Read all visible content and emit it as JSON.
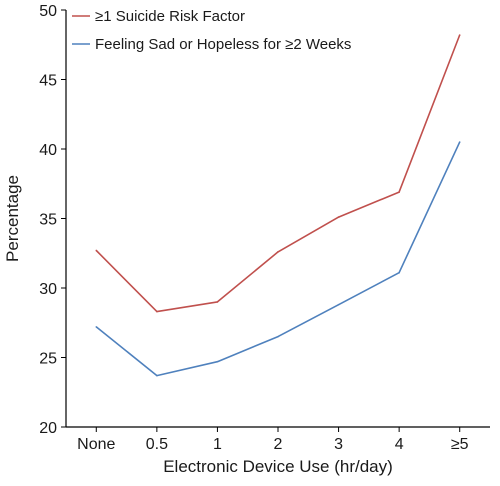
{
  "chart_data": {
    "type": "line",
    "categories": [
      "None",
      "0.5",
      "1",
      "2",
      "3",
      "4",
      "≥5"
    ],
    "series": [
      {
        "name": "≥1 Suicide Risk Factor",
        "color": "#c0504d",
        "values": [
          32.7,
          28.3,
          29.0,
          32.6,
          35.1,
          36.9,
          48.2
        ]
      },
      {
        "name": "Feeling Sad or Hopeless for ≥2 Weeks",
        "color": "#4f81bd",
        "values": [
          27.2,
          23.7,
          24.7,
          26.5,
          28.8,
          31.1,
          40.5
        ]
      }
    ],
    "xlabel": "Electronic Device Use (hr/day)",
    "ylabel": "Percentage",
    "ylim": [
      20,
      50
    ],
    "yticks": [
      20,
      25,
      30,
      35,
      40,
      45,
      50
    ],
    "grid": false,
    "legend_position": "top-left"
  }
}
